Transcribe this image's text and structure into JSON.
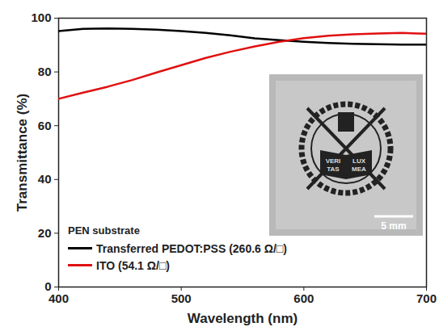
{
  "chart_data": {
    "type": "line",
    "xlabel": "Wavelength (nm)",
    "ylabel": "Transmittance (%)",
    "x": [
      400,
      420,
      440,
      460,
      480,
      500,
      520,
      540,
      560,
      580,
      600,
      620,
      640,
      660,
      680,
      700
    ],
    "series": [
      {
        "name": "Transferred PEDOT:PSS (260.6 Ω/□)",
        "color": "#000000",
        "values": [
          95.2,
          96,
          96.2,
          96,
          95.7,
          95.2,
          94.5,
          93.6,
          92.5,
          91.8,
          91.2,
          90.8,
          90.5,
          90.3,
          90.2,
          90.2
        ]
      },
      {
        "name": "ITO (54.1 Ω/□)",
        "color": "#e01010",
        "values": [
          70,
          72.3,
          74.5,
          77,
          79.8,
          82.5,
          85.2,
          87.5,
          89.5,
          91.2,
          92.6,
          93.5,
          94,
          94.3,
          94.5,
          94.2
        ]
      }
    ],
    "legend_title": "PEN substrate",
    "legend": "lower left",
    "xlim": [
      400,
      700
    ],
    "xticks": [
      400,
      500,
      600,
      700
    ],
    "ylim": [
      0,
      100
    ],
    "yticks": [
      0,
      20,
      40,
      60,
      80,
      100
    ],
    "grid": false,
    "annotations": [
      "5 mm"
    ],
    "emblem_text": [
      "VERI",
      "LUX",
      "TAS",
      "MEA"
    ]
  }
}
